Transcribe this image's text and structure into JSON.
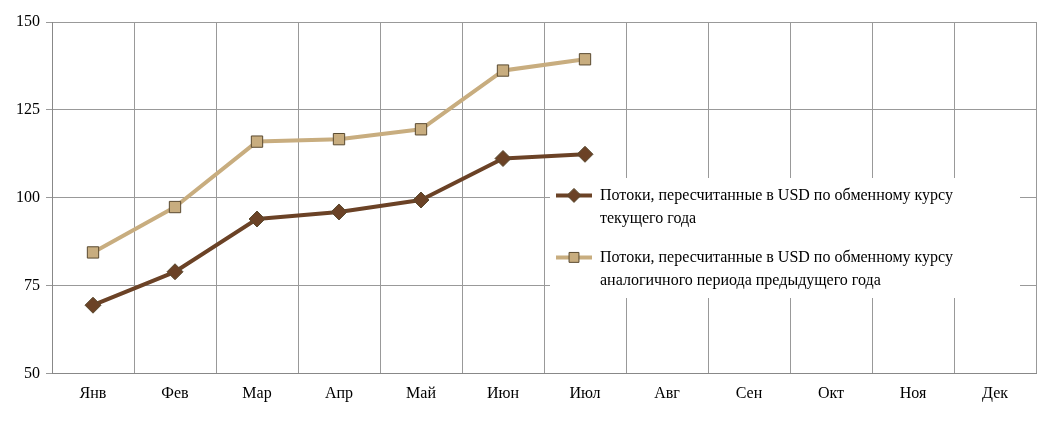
{
  "chart_data": {
    "type": "line",
    "categories": [
      "Янв",
      "Фев",
      "Мар",
      "Апр",
      "Май",
      "Июн",
      "Июл",
      "Авг",
      "Сен",
      "Окт",
      "Ноя",
      "Дек"
    ],
    "series": [
      {
        "name": "Потоки, пересчитанные в USD по обменному курсу текущего года",
        "color": "#6b4226",
        "marker": "diamond",
        "values": [
          69.5,
          79,
          94,
          96,
          99.4,
          111.2,
          112.4,
          null,
          null,
          null,
          null,
          null
        ]
      },
      {
        "name": "Потоки, пересчитанные в USD по обменному курсу аналогичного периода предыдущего года",
        "color": "#c8ad7f",
        "marker": "square",
        "values": [
          84.5,
          97.4,
          116,
          116.7,
          119.5,
          136.2,
          139.4,
          null,
          null,
          null,
          null,
          null
        ]
      }
    ],
    "ylim": [
      50,
      150
    ],
    "yticks": [
      50,
      75,
      100,
      125,
      150
    ],
    "grid": true,
    "legend": "right",
    "line_style": "solid"
  }
}
